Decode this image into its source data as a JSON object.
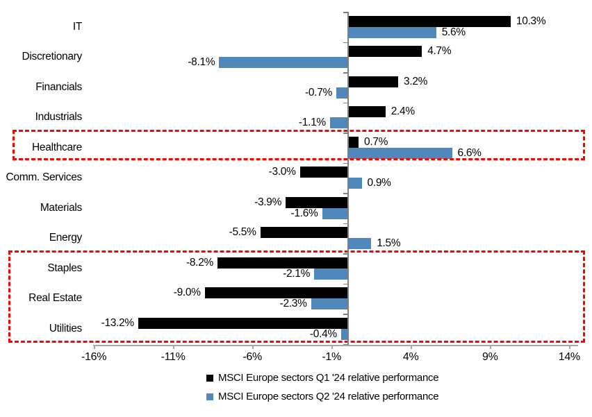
{
  "chart_data": {
    "type": "bar",
    "orientation": "horizontal",
    "title": "",
    "categories": [
      "IT",
      "Discretionary",
      "Financials",
      "Industrials",
      "Healthcare",
      "Comm. Services",
      "Materials",
      "Energy",
      "Staples",
      "Real Estate",
      "Utilities"
    ],
    "series": [
      {
        "name": "MSCI Europe sectors Q1 '24 relative performance",
        "color": "#000000",
        "values": [
          10.3,
          4.7,
          3.2,
          2.4,
          0.7,
          -3.0,
          -3.9,
          -5.5,
          -8.2,
          -9.0,
          -13.2
        ],
        "labels": [
          "10.3%",
          "4.7%",
          "3.2%",
          "2.4%",
          "0.7%",
          "-3.0%",
          "-3.9%",
          "-5.5%",
          "-8.2%",
          "-9.0%",
          "-13.2%"
        ]
      },
      {
        "name": "MSCI Europe sectors Q2 '24 relative performance",
        "color": "#5088BC",
        "values": [
          5.6,
          -8.1,
          -0.7,
          -1.1,
          6.6,
          0.9,
          -1.6,
          1.5,
          -2.1,
          -2.3,
          -0.4
        ],
        "labels": [
          "5.6%",
          "-8.1%",
          "-0.7%",
          "-1.1%",
          "6.6%",
          "0.9%",
          "-1.6%",
          "1.5%",
          "-2.1%",
          "-2.3%",
          "-0.4%"
        ]
      }
    ],
    "x_axis": {
      "tick_values": [
        -16,
        -11,
        -6,
        -1,
        4,
        9,
        14
      ],
      "tick_labels": [
        "-16%",
        "-11%",
        "-6%",
        "-1%",
        "4%",
        "9%",
        "14%"
      ],
      "min": -17.1,
      "max": 14.6,
      "unit": "%"
    },
    "grid": false,
    "legend_position": "bottom",
    "highlight_color": "#ff0000",
    "highlight_boxes": [
      {
        "id": "healthcare-highlight",
        "categories": [
          "Healthcare"
        ]
      },
      {
        "id": "defensives-highlight",
        "categories": [
          "Staples",
          "Real Estate",
          "Utilities"
        ]
      }
    ]
  }
}
